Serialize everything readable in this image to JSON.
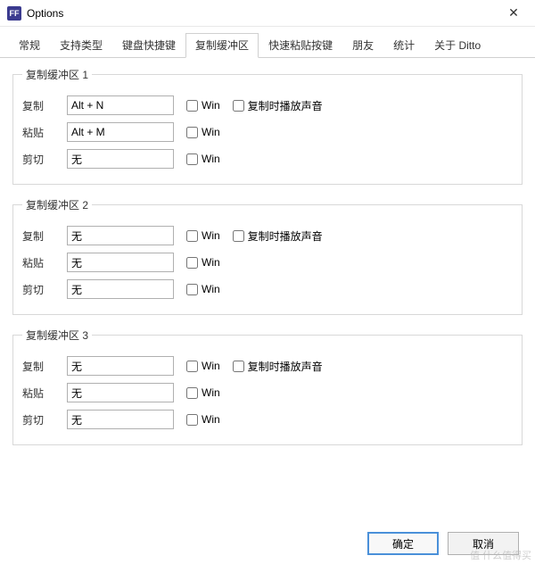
{
  "window": {
    "title": "Options",
    "icon_text": "FF"
  },
  "tabs": {
    "t0": "常规",
    "t1": "支持类型",
    "t2": "键盘快捷键",
    "t3": "复制缓冲区",
    "t4": "快速粘贴按键",
    "t5": "朋友",
    "t6": "统计",
    "t7": "关于 Ditto"
  },
  "labels": {
    "copy": "复制",
    "paste": "粘贴",
    "cut": "剪切",
    "win": "Win",
    "play_sound": "复制时播放声音",
    "ok": "确定",
    "cancel": "取消"
  },
  "groups": {
    "g1": {
      "title": "复制缓冲区 1",
      "copy_value": "Alt + N",
      "paste_value": "Alt + M",
      "cut_value": "无"
    },
    "g2": {
      "title": "复制缓冲区 2",
      "copy_value": "无",
      "paste_value": "无",
      "cut_value": "无"
    },
    "g3": {
      "title": "复制缓冲区 3",
      "copy_value": "无",
      "paste_value": "无",
      "cut_value": "无"
    }
  },
  "watermark": "值 什么值得买"
}
